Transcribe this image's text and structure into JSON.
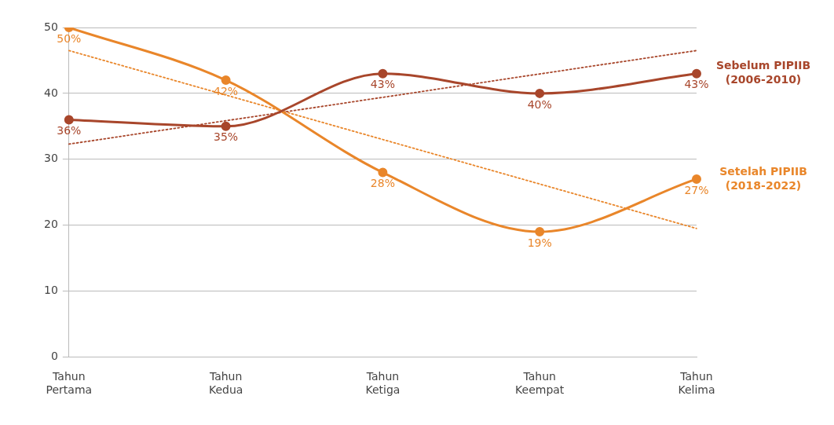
{
  "chart_data": {
    "type": "line",
    "categories": [
      "Tahun Pertama",
      "Tahun Kedua",
      "Tahun Ketiga",
      "Tahun Keempat",
      "Tahun Kelima"
    ],
    "series": [
      {
        "name": "Sebelum PIPIIB (2006-2010)",
        "color": "#a8462b",
        "values": [
          36,
          35,
          43,
          40,
          43
        ],
        "value_labels": [
          "36%",
          "35%",
          "43%",
          "40%",
          "43%"
        ],
        "marker": "circle",
        "line_style": "solid"
      },
      {
        "name": "Setelah PIPIIB (2018-2022)",
        "color": "#e9862a",
        "values": [
          50,
          42,
          28,
          19,
          27
        ],
        "value_labels": [
          "50%",
          "42%",
          "28%",
          "19%",
          "27%"
        ],
        "marker": "circle",
        "line_style": "solid"
      },
      {
        "color": "#a8462b",
        "values": [
          32.3,
          null,
          null,
          null,
          46.5
        ],
        "marker": "none",
        "line_style": "dotted"
      },
      {
        "color": "#e9862a",
        "values": [
          46.5,
          null,
          null,
          null,
          19.5
        ],
        "marker": "none",
        "line_style": "dotted"
      }
    ],
    "ylim": [
      0,
      50
    ],
    "yticks": [
      0,
      10,
      20,
      30,
      40,
      50
    ],
    "grid": "y",
    "legend": false
  }
}
